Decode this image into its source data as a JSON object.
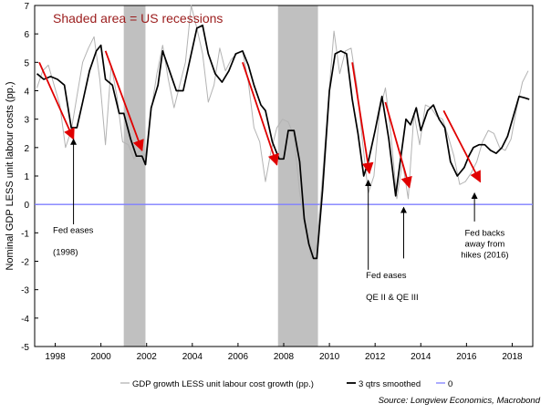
{
  "chart_data": {
    "type": "line",
    "title": "Shaded area = US recessions",
    "ylabel": "Nominal GDP LESS unit labour costs (pp.)",
    "xlim": [
      1997.1,
      2018.9
    ],
    "ylim": [
      -5,
      7
    ],
    "yticks": [
      -5,
      -4,
      -3,
      -2,
      -1,
      0,
      1,
      2,
      3,
      4,
      5,
      6,
      7
    ],
    "xticks": [
      1998,
      2000,
      2002,
      2004,
      2006,
      2008,
      2010,
      2012,
      2014,
      2016,
      2018
    ],
    "recessions": [
      [
        2001.0,
        2001.95
      ],
      [
        2007.75,
        2009.5
      ]
    ],
    "zero_line": 0,
    "series": [
      {
        "name": "GDP growth LESS unit labour cost growth (pp.)",
        "color": "#b3b3b3",
        "x": [
          1997.2,
          1997.45,
          1997.7,
          1997.95,
          1998.2,
          1998.45,
          1998.7,
          1998.95,
          1999.2,
          1999.45,
          1999.7,
          1999.95,
          2000.2,
          2000.45,
          2000.7,
          2000.95,
          2001.2,
          2001.45,
          2001.7,
          2001.95,
          2002.2,
          2002.45,
          2002.7,
          2002.95,
          2003.2,
          2003.45,
          2003.7,
          2003.95,
          2004.2,
          2004.45,
          2004.7,
          2004.95,
          2005.2,
          2005.45,
          2005.7,
          2005.95,
          2006.2,
          2006.45,
          2006.7,
          2006.95,
          2007.2,
          2007.45,
          2007.7,
          2007.95,
          2008.2,
          2008.45,
          2008.7,
          2008.95,
          2009.2,
          2009.45,
          2009.7,
          2009.95,
          2010.2,
          2010.45,
          2010.7,
          2010.95,
          2011.2,
          2011.45,
          2011.7,
          2011.95,
          2012.2,
          2012.45,
          2012.7,
          2012.95,
          2013.2,
          2013.45,
          2013.7,
          2013.95,
          2014.2,
          2014.45,
          2014.7,
          2014.95,
          2015.2,
          2015.45,
          2015.7,
          2015.95,
          2016.2,
          2016.45,
          2016.7,
          2016.95,
          2017.2,
          2017.45,
          2017.7,
          2017.95,
          2018.2,
          2018.45,
          2018.7
        ],
        "y": [
          4.1,
          4.7,
          4.9,
          4.2,
          3.5,
          2.0,
          2.6,
          3.8,
          5.0,
          5.5,
          5.9,
          4.4,
          2.1,
          4.9,
          3.8,
          2.2,
          2.1,
          1.6,
          1.9,
          1.7,
          3.3,
          4.6,
          5.6,
          4.4,
          3.4,
          4.2,
          5.0,
          7.0,
          6.2,
          5.3,
          3.6,
          4.2,
          5.5,
          4.7,
          5.1,
          5.3,
          5.4,
          4.3,
          2.7,
          2.2,
          0.8,
          1.9,
          2.7,
          3.0,
          2.9,
          2.4,
          0.4,
          -0.8,
          -1.9,
          -1.4,
          1.0,
          3.6,
          6.1,
          4.6,
          5.4,
          5.5,
          4.2,
          2.2,
          0.4,
          1.0,
          3.3,
          4.1,
          2.4,
          0.2,
          1.5,
          0.2,
          3.2,
          2.1,
          3.5,
          3.4,
          3.1,
          3.0,
          2.4,
          1.7,
          0.7,
          0.8,
          1.1,
          1.5,
          2.2,
          2.6,
          2.5,
          2.0,
          1.9,
          2.3,
          3.4,
          4.3,
          4.7
        ]
      },
      {
        "name": "3 qtrs smoothed",
        "color": "#000000",
        "x": [
          1997.2,
          1997.5,
          1997.8,
          1998.1,
          1998.4,
          1998.7,
          1998.95,
          1999.2,
          1999.5,
          1999.8,
          2000.0,
          2000.2,
          2000.5,
          2000.8,
          2001.0,
          2001.3,
          2001.55,
          2001.8,
          2001.95,
          2002.2,
          2002.5,
          2002.7,
          2003.0,
          2003.3,
          2003.6,
          2003.9,
          2004.2,
          2004.45,
          2004.7,
          2005.0,
          2005.3,
          2005.6,
          2005.9,
          2006.2,
          2006.45,
          2006.7,
          2007.0,
          2007.2,
          2007.5,
          2007.8,
          2008.0,
          2008.2,
          2008.45,
          2008.7,
          2008.9,
          2009.1,
          2009.3,
          2009.45,
          2009.7,
          2010.0,
          2010.25,
          2010.5,
          2010.75,
          2011.0,
          2011.25,
          2011.5,
          2011.7,
          2012.0,
          2012.3,
          2012.6,
          2012.9,
          2013.1,
          2013.35,
          2013.55,
          2013.8,
          2014.0,
          2014.3,
          2014.55,
          2014.8,
          2015.05,
          2015.3,
          2015.6,
          2015.9,
          2016.1,
          2016.3,
          2016.55,
          2016.8,
          2017.05,
          2017.3,
          2017.55,
          2017.8,
          2018.05,
          2018.3,
          2018.55,
          2018.75
        ],
        "y": [
          4.6,
          4.4,
          4.5,
          4.4,
          4.2,
          2.7,
          2.7,
          3.6,
          4.7,
          5.4,
          5.6,
          4.4,
          4.2,
          3.2,
          3.2,
          2.3,
          1.7,
          1.7,
          1.4,
          3.4,
          4.2,
          5.4,
          4.7,
          4.0,
          4.0,
          5.1,
          6.2,
          6.3,
          5.3,
          4.6,
          4.3,
          4.7,
          5.3,
          5.4,
          4.9,
          4.2,
          3.5,
          3.3,
          2.2,
          1.6,
          1.6,
          2.6,
          2.6,
          1.5,
          -0.5,
          -1.4,
          -1.9,
          -1.9,
          0.5,
          4.0,
          5.3,
          5.4,
          5.3,
          3.7,
          2.5,
          1.0,
          1.5,
          2.6,
          3.8,
          2.3,
          0.3,
          1.5,
          3.0,
          2.8,
          3.4,
          2.6,
          3.3,
          3.5,
          3.0,
          2.7,
          1.5,
          1.0,
          1.3,
          1.7,
          2.0,
          2.1,
          2.1,
          1.9,
          1.8,
          2.0,
          2.4,
          3.1,
          3.8,
          3.75,
          3.7
        ]
      },
      {
        "name": "0",
        "color": "#7f7fff",
        "x": [
          1997.1,
          2018.9
        ],
        "y": [
          0,
          0
        ]
      }
    ],
    "arrows": [
      {
        "x1": 1997.3,
        "y1": 5.0,
        "x2": 1998.8,
        "y2": 2.3
      },
      {
        "x1": 2000.2,
        "y1": 5.4,
        "x2": 2001.8,
        "y2": 1.9
      },
      {
        "x1": 2006.2,
        "y1": 5.0,
        "x2": 2007.7,
        "y2": 1.4
      },
      {
        "x1": 2011.0,
        "y1": 5.0,
        "x2": 2011.75,
        "y2": 1.1
      },
      {
        "x1": 2012.45,
        "y1": 3.6,
        "x2": 2013.5,
        "y2": 0.6
      },
      {
        "x1": 2015.0,
        "y1": 3.3,
        "x2": 2016.6,
        "y2": 0.8
      }
    ],
    "annotations": [
      {
        "lines": [
          "Fed eases",
          "",
          "(1998)"
        ],
        "arrow_from": [
          1998.8,
          -0.7
        ],
        "arrow_to": [
          1998.8,
          2.3
        ],
        "text_at": [
          1997.9,
          -1.0
        ],
        "align": "start"
      },
      {
        "lines": [
          "Fed eases",
          "",
          "QE II & QE III"
        ],
        "arrow_from": [
          2011.7,
          -2.3
        ],
        "arrow_to": [
          2011.7,
          0.85
        ],
        "text_at": [
          2011.6,
          -2.6
        ],
        "align": "start"
      },
      {
        "lines": [
          "Fed backs",
          "away from",
          "hikes (2016)"
        ],
        "arrow_from": [
          2016.35,
          -0.6
        ],
        "arrow_to": [
          2016.35,
          0.4
        ],
        "text_at": [
          2016.8,
          -1.1
        ],
        "align": "middle"
      }
    ],
    "extra_arrows": [
      {
        "x1": 2013.25,
        "y1": -1.9,
        "x2": 2013.25,
        "y2": -0.1
      }
    ],
    "legend": {
      "position": "bottom",
      "items": [
        {
          "label": "GDP growth LESS unit labour cost growth (pp.)",
          "color": "#b3b3b3"
        },
        {
          "label": "3 qtrs smoothed",
          "color": "#000000"
        },
        {
          "label": "0",
          "color": "#7f7fff"
        }
      ]
    },
    "source": "Source: Longview Economics, Macrobond"
  }
}
